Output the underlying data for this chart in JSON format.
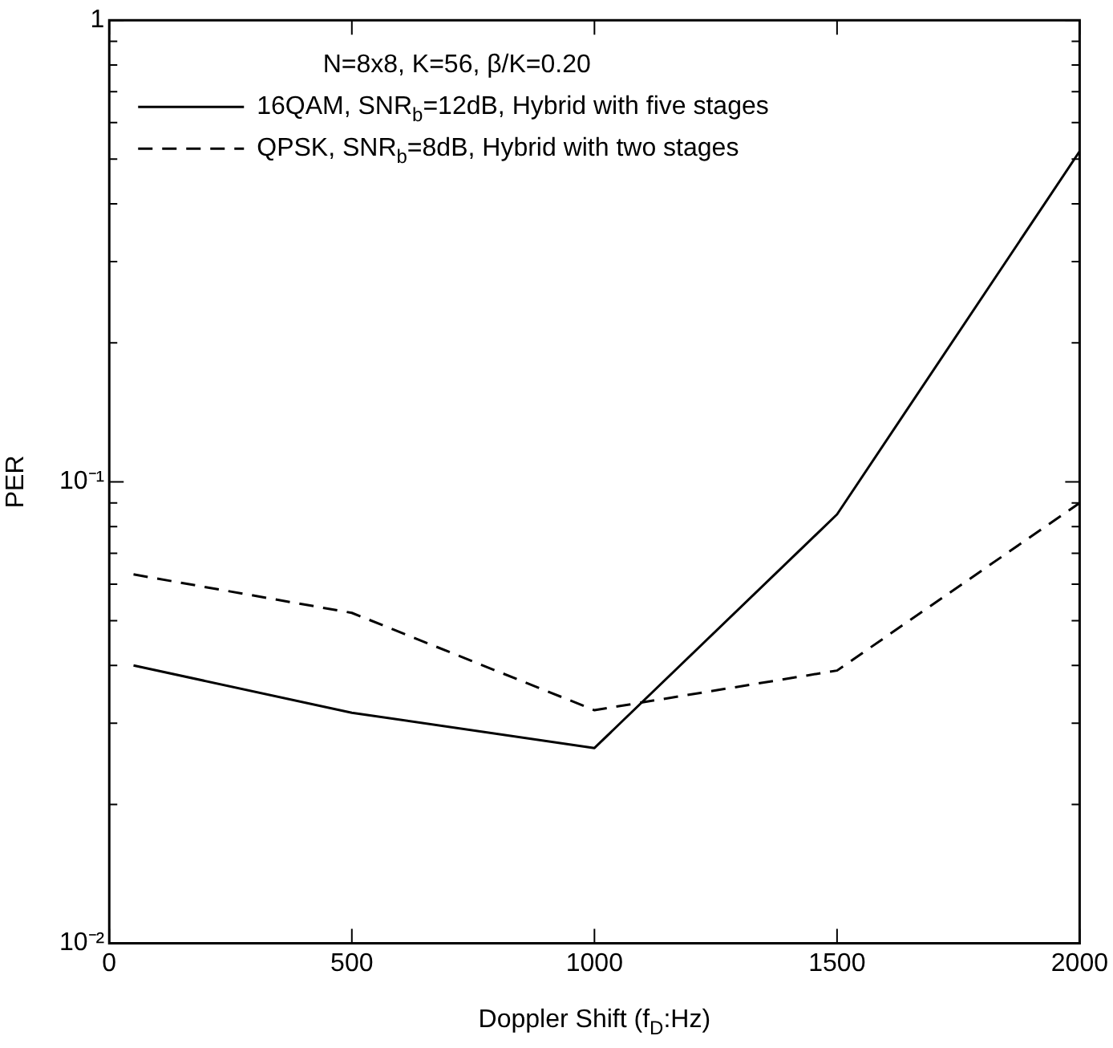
{
  "chart_data": {
    "type": "line",
    "xlabel": "Doppler Shift (f$_{D}$:Hz)",
    "ylabel": "PER",
    "legend_title": "N=8x8, K=56, β/K=0.20",
    "legend": "top left",
    "log": "y",
    "marker": "none",
    "x": [
      50,
      500,
      1000,
      1500,
      2000
    ],
    "series": [
      {
        "name": "16QAM, SNR$_{b}$=12dB, Hybrid with five stages",
        "color": "#000000",
        "line_style": "solid",
        "values": [
          0.04,
          0.0316,
          0.0265,
          0.085,
          0.52
        ]
      },
      {
        "name": "QPSK, SNR$_{b}$=8dB, Hybrid with two stages",
        "color": "#000000",
        "line_style": "dashed",
        "values": [
          0.063,
          0.052,
          0.032,
          0.039,
          0.09
        ]
      }
    ],
    "xlim": [
      0,
      2000
    ],
    "xticks": [
      0,
      500,
      1000,
      1500,
      2000
    ],
    "ylim": [
      0.01,
      1
    ],
    "yticks": [
      {
        "value": 0.01,
        "label": "10⁻²"
      },
      {
        "value": 0.02,
        "label": null
      },
      {
        "value": 0.03,
        "label": null
      },
      {
        "value": 0.04,
        "label": null
      },
      {
        "value": 0.05,
        "label": null
      },
      {
        "value": 0.06,
        "label": null
      },
      {
        "value": 0.07,
        "label": null
      },
      {
        "value": 0.08,
        "label": null
      },
      {
        "value": 0.09,
        "label": null
      },
      {
        "value": 0.1,
        "label": "10⁻¹"
      },
      {
        "value": 0.2,
        "label": null
      },
      {
        "value": 0.3,
        "label": null
      },
      {
        "value": 0.4,
        "label": null
      },
      {
        "value": 0.5,
        "label": null
      },
      {
        "value": 0.6,
        "label": null
      },
      {
        "value": 0.7,
        "label": null
      },
      {
        "value": 0.8,
        "label": null
      },
      {
        "value": 0.9,
        "label": null
      },
      {
        "value": 1,
        "label": "1"
      }
    ]
  }
}
